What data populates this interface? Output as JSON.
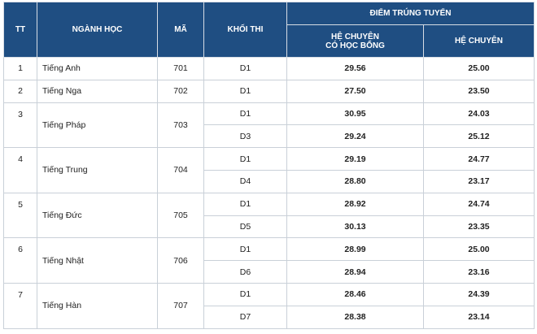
{
  "header": {
    "tt": "TT",
    "nganh": "NGÀNH HỌC",
    "ma": "MÃ",
    "khoi": "KHỐI THI",
    "diem": "ĐIỂM TRÚNG TUYỂN",
    "hb1": "HỆ CHUYÊN",
    "hb2": "CÓ HỌC BỔNG",
    "hc": "HỆ CHUYÊN"
  },
  "rows": [
    {
      "tt": "1",
      "nganh": "Tiếng Anh",
      "ma": "701",
      "sub": [
        {
          "khoi": "D1",
          "hb": "29.56",
          "hc": "25.00"
        }
      ]
    },
    {
      "tt": "2",
      "nganh": "Tiếng Nga",
      "ma": "702",
      "sub": [
        {
          "khoi": "D1",
          "hb": "27.50",
          "hc": "23.50"
        }
      ]
    },
    {
      "tt": "3",
      "nganh": "Tiếng Pháp",
      "ma": "703",
      "sub": [
        {
          "khoi": "D1",
          "hb": "30.95",
          "hc": "24.03"
        },
        {
          "khoi": "D3",
          "hb": "29.24",
          "hc": "25.12"
        }
      ]
    },
    {
      "tt": "4",
      "nganh": "Tiếng Trung",
      "ma": "704",
      "sub": [
        {
          "khoi": "D1",
          "hb": "29.19",
          "hc": "24.77"
        },
        {
          "khoi": "D4",
          "hb": "28.80",
          "hc": "23.17"
        }
      ]
    },
    {
      "tt": "5",
      "nganh": "Tiếng Đức",
      "ma": "705",
      "sub": [
        {
          "khoi": "D1",
          "hb": "28.92",
          "hc": "24.74"
        },
        {
          "khoi": "D5",
          "hb": "30.13",
          "hc": "23.35"
        }
      ]
    },
    {
      "tt": "6",
      "nganh": "Tiếng Nhật",
      "ma": "706",
      "sub": [
        {
          "khoi": "D1",
          "hb": "28.99",
          "hc": "25.00"
        },
        {
          "khoi": "D6",
          "hb": "28.94",
          "hc": "23.16"
        }
      ]
    },
    {
      "tt": "7",
      "nganh": "Tiếng Hàn",
      "ma": "707",
      "sub": [
        {
          "khoi": "D1",
          "hb": "28.46",
          "hc": "24.39"
        },
        {
          "khoi": "D7",
          "hb": "28.38",
          "hc": "23.14"
        }
      ]
    }
  ]
}
